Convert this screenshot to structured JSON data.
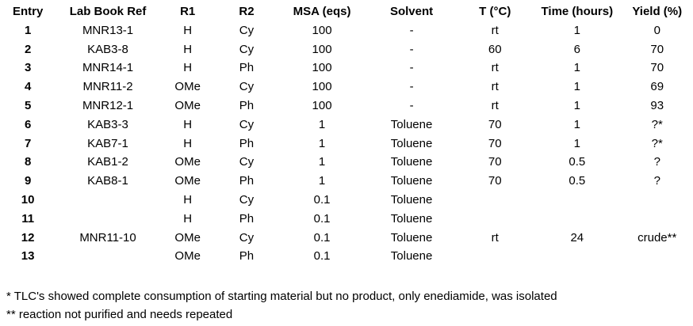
{
  "table": {
    "headers": [
      "Entry",
      "Lab Book Ref",
      "R1",
      "R2",
      "MSA (eqs)",
      "Solvent",
      "T (°C)",
      "Time (hours)",
      "Yield (%)"
    ],
    "rows": [
      [
        "1",
        "MNR13-1",
        "H",
        "Cy",
        "100",
        "-",
        "rt",
        "1",
        "0"
      ],
      [
        "2",
        "KAB3-8",
        "H",
        "Cy",
        "100",
        "-",
        "60",
        "6",
        "70"
      ],
      [
        "3",
        "MNR14-1",
        "H",
        "Ph",
        "100",
        "-",
        "rt",
        "1",
        "70"
      ],
      [
        "4",
        "MNR11-2",
        "OMe",
        "Cy",
        "100",
        "-",
        "rt",
        "1",
        "69"
      ],
      [
        "5",
        "MNR12-1",
        "OMe",
        "Ph",
        "100",
        "-",
        "rt",
        "1",
        "93"
      ],
      [
        "6",
        "KAB3-3",
        "H",
        "Cy",
        "1",
        "Toluene",
        "70",
        "1",
        "?*"
      ],
      [
        "7",
        "KAB7-1",
        "H",
        "Ph",
        "1",
        "Toluene",
        "70",
        "1",
        "?*"
      ],
      [
        "8",
        "KAB1-2",
        "OMe",
        "Cy",
        "1",
        "Toluene",
        "70",
        "0.5",
        "?"
      ],
      [
        "9",
        "KAB8-1",
        "OMe",
        "Ph",
        "1",
        "Toluene",
        "70",
        "0.5",
        "?"
      ],
      [
        "10",
        "",
        "H",
        "Cy",
        "0.1",
        "Toluene",
        "",
        "",
        ""
      ],
      [
        "11",
        "",
        "H",
        "Ph",
        "0.1",
        "Toluene",
        "",
        "",
        ""
      ],
      [
        "12",
        "MNR11-10",
        "OMe",
        "Cy",
        "0.1",
        "Toluene",
        "rt",
        "24",
        "crude**"
      ],
      [
        "13",
        "",
        "OMe",
        "Ph",
        "0.1",
        "Toluene",
        "",
        "",
        ""
      ]
    ]
  },
  "footnotes": [
    "* TLC's showed complete consumption of starting material but no product, only enediamide, was isolated",
    "** reaction not purified and needs repeated"
  ]
}
